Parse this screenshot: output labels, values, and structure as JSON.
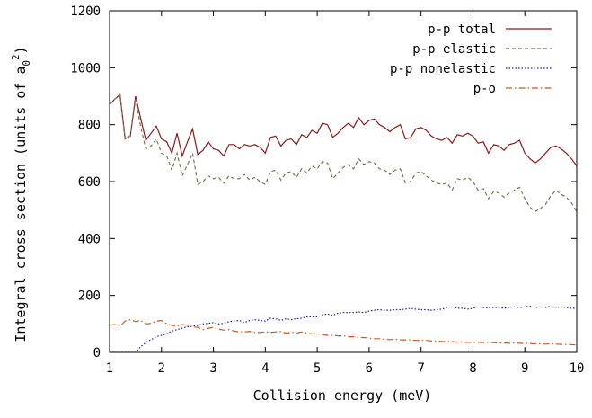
{
  "chart_data": {
    "type": "line",
    "title": "",
    "xlabel": "Collision energy (meV)",
    "ylabel": "Integral cross section (units of a",
    "ylabel_sub": "0",
    "ylabel_sup": "2",
    "ylabel_close": ")",
    "xlim": [
      1,
      10
    ],
    "ylim": [
      0,
      1200
    ],
    "x_ticks": [
      1,
      2,
      3,
      4,
      5,
      6,
      7,
      8,
      9,
      10
    ],
    "y_ticks": [
      0,
      200,
      400,
      600,
      800,
      1000,
      1200
    ],
    "grid": false,
    "legend_position": "top-right",
    "series": [
      {
        "name": "p-p total",
        "color": "#8b1a1a",
        "dash": "solid",
        "x": [
          1.0,
          1.1,
          1.2,
          1.3,
          1.4,
          1.5,
          1.6,
          1.7,
          1.8,
          1.9,
          2.0,
          2.1,
          2.2,
          2.3,
          2.4,
          2.5,
          2.6,
          2.7,
          2.8,
          2.9,
          3.0,
          3.1,
          3.2,
          3.3,
          3.4,
          3.5,
          3.6,
          3.7,
          3.8,
          3.9,
          4.0,
          4.1,
          4.2,
          4.3,
          4.4,
          4.5,
          4.6,
          4.7,
          4.8,
          4.9,
          5.0,
          5.1,
          5.2,
          5.3,
          5.4,
          5.5,
          5.6,
          5.7,
          5.8,
          5.9,
          6.0,
          6.1,
          6.2,
          6.3,
          6.4,
          6.5,
          6.6,
          6.7,
          6.8,
          6.9,
          7.0,
          7.1,
          7.2,
          7.3,
          7.4,
          7.5,
          7.6,
          7.7,
          7.8,
          7.9,
          8.0,
          8.1,
          8.2,
          8.3,
          8.4,
          8.5,
          8.6,
          8.7,
          8.8,
          8.9,
          9.0,
          9.1,
          9.2,
          9.3,
          9.4,
          9.5,
          9.6,
          9.7,
          9.8,
          9.9,
          10.0
        ],
        "y": [
          870,
          890,
          905,
          750,
          760,
          900,
          820,
          745,
          770,
          795,
          750,
          740,
          700,
          770,
          690,
          740,
          785,
          695,
          710,
          740,
          715,
          710,
          690,
          730,
          730,
          715,
          730,
          725,
          730,
          720,
          700,
          755,
          760,
          725,
          745,
          750,
          730,
          765,
          755,
          780,
          770,
          805,
          800,
          755,
          770,
          790,
          805,
          790,
          825,
          800,
          815,
          820,
          800,
          790,
          775,
          790,
          800,
          750,
          755,
          785,
          790,
          780,
          760,
          750,
          745,
          755,
          735,
          765,
          760,
          770,
          760,
          735,
          740,
          700,
          730,
          725,
          710,
          730,
          735,
          745,
          700,
          680,
          665,
          680,
          700,
          720,
          725,
          715,
          700,
          680,
          655
        ]
      },
      {
        "name": "p-p elastic",
        "color": "#7f7350",
        "dash": "4,3",
        "x": [
          1.0,
          1.1,
          1.2,
          1.3,
          1.4,
          1.5,
          1.6,
          1.7,
          1.8,
          1.9,
          2.0,
          2.1,
          2.2,
          2.3,
          2.4,
          2.5,
          2.6,
          2.7,
          2.8,
          2.9,
          3.0,
          3.1,
          3.2,
          3.3,
          3.4,
          3.5,
          3.6,
          3.7,
          3.8,
          3.9,
          4.0,
          4.1,
          4.2,
          4.3,
          4.4,
          4.5,
          4.6,
          4.7,
          4.8,
          4.9,
          5.0,
          5.1,
          5.2,
          5.3,
          5.4,
          5.5,
          5.6,
          5.7,
          5.8,
          5.9,
          6.0,
          6.1,
          6.2,
          6.3,
          6.4,
          6.5,
          6.6,
          6.7,
          6.8,
          6.9,
          7.0,
          7.1,
          7.2,
          7.3,
          7.4,
          7.5,
          7.6,
          7.7,
          7.8,
          7.9,
          8.0,
          8.1,
          8.2,
          8.3,
          8.4,
          8.5,
          8.6,
          8.7,
          8.8,
          8.9,
          9.0,
          9.1,
          9.2,
          9.3,
          9.4,
          9.5,
          9.6,
          9.7,
          9.8,
          9.9,
          10.0
        ],
        "y": [
          870,
          890,
          905,
          750,
          760,
          890,
          790,
          715,
          725,
          750,
          700,
          690,
          640,
          700,
          620,
          660,
          700,
          590,
          600,
          620,
          610,
          615,
          595,
          620,
          610,
          610,
          625,
          605,
          615,
          600,
          590,
          635,
          640,
          605,
          630,
          635,
          615,
          645,
          630,
          655,
          645,
          670,
          665,
          610,
          630,
          650,
          660,
          645,
          680,
          660,
          670,
          665,
          645,
          640,
          625,
          640,
          645,
          595,
          600,
          630,
          635,
          620,
          605,
          595,
          590,
          595,
          570,
          610,
          605,
          615,
          600,
          570,
          575,
          540,
          565,
          560,
          545,
          560,
          570,
          580,
          540,
          510,
          495,
          505,
          520,
          550,
          570,
          555,
          545,
          525,
          495
        ]
      },
      {
        "name": "p-p nonelastic",
        "color": "#1c1cb4",
        "dash": "1.5,2",
        "x": [
          1.0,
          1.1,
          1.2,
          1.3,
          1.4,
          1.5,
          1.6,
          1.7,
          1.8,
          1.9,
          2.0,
          2.1,
          2.2,
          2.3,
          2.4,
          2.5,
          2.6,
          2.7,
          2.8,
          2.9,
          3.0,
          3.1,
          3.2,
          3.3,
          3.4,
          3.5,
          3.6,
          3.7,
          3.8,
          3.9,
          4.0,
          4.1,
          4.2,
          4.3,
          4.4,
          4.5,
          4.6,
          4.7,
          4.8,
          4.9,
          5.0,
          5.1,
          5.2,
          5.3,
          5.4,
          5.5,
          5.6,
          5.7,
          5.8,
          5.9,
          6.0,
          6.1,
          6.2,
          6.3,
          6.4,
          6.5,
          6.6,
          6.7,
          6.8,
          6.9,
          7.0,
          7.1,
          7.2,
          7.3,
          7.4,
          7.5,
          7.6,
          7.7,
          7.8,
          7.9,
          8.0,
          8.1,
          8.2,
          8.3,
          8.4,
          8.5,
          8.6,
          8.7,
          8.8,
          8.9,
          9.0,
          9.1,
          9.2,
          9.3,
          9.4,
          9.5,
          9.6,
          9.7,
          9.8,
          9.9,
          10.0
        ],
        "y": [
          0,
          0,
          0,
          0,
          0,
          0,
          20,
          35,
          45,
          55,
          60,
          65,
          75,
          80,
          85,
          90,
          92,
          95,
          100,
          102,
          105,
          100,
          102,
          108,
          110,
          112,
          105,
          112,
          115,
          112,
          110,
          120,
          118,
          112,
          118,
          115,
          118,
          120,
          125,
          125,
          125,
          132,
          135,
          130,
          138,
          140,
          140,
          140,
          142,
          140,
          145,
          148,
          150,
          148,
          148,
          150,
          150,
          152,
          155,
          152,
          150,
          150,
          148,
          150,
          152,
          158,
          160,
          155,
          155,
          152,
          155,
          160,
          158,
          156,
          158,
          158,
          155,
          158,
          160,
          158,
          160,
          162,
          158,
          160,
          158,
          162,
          158,
          160,
          158,
          155,
          155
        ]
      },
      {
        "name": "p-o",
        "color": "#d2561f",
        "dash": "7,3,1.5,3",
        "x": [
          1.0,
          1.1,
          1.2,
          1.3,
          1.4,
          1.5,
          1.6,
          1.7,
          1.8,
          1.9,
          2.0,
          2.1,
          2.2,
          2.3,
          2.4,
          2.5,
          2.6,
          2.7,
          2.8,
          2.9,
          3.0,
          3.1,
          3.2,
          3.3,
          3.4,
          3.5,
          3.6,
          3.7,
          3.8,
          3.9,
          4.0,
          4.1,
          4.2,
          4.3,
          4.4,
          4.5,
          4.6,
          4.7,
          4.8,
          4.9,
          5.0,
          5.1,
          5.2,
          5.3,
          5.4,
          5.5,
          5.6,
          5.7,
          5.8,
          5.9,
          6.0,
          6.1,
          6.2,
          6.3,
          6.4,
          6.5,
          6.6,
          6.7,
          6.8,
          6.9,
          7.0,
          7.1,
          7.2,
          7.3,
          7.4,
          7.5,
          7.6,
          7.7,
          7.8,
          7.9,
          8.0,
          8.1,
          8.2,
          8.3,
          8.4,
          8.5,
          8.6,
          8.7,
          8.8,
          8.9,
          9.0,
          9.1,
          9.2,
          9.3,
          9.4,
          9.5,
          9.6,
          9.7,
          9.8,
          9.9,
          10.0
        ],
        "y": [
          95,
          98,
          92,
          110,
          115,
          108,
          112,
          100,
          102,
          110,
          112,
          100,
          95,
          92,
          98,
          95,
          90,
          88,
          80,
          85,
          88,
          82,
          78,
          80,
          75,
          72,
          72,
          74,
          70,
          70,
          72,
          70,
          72,
          73,
          68,
          70,
          68,
          72,
          68,
          65,
          65,
          62,
          60,
          60,
          58,
          58,
          55,
          55,
          52,
          52,
          50,
          48,
          48,
          46,
          45,
          46,
          44,
          44,
          44,
          42,
          42,
          42,
          40,
          40,
          38,
          38,
          38,
          36,
          36,
          35,
          35,
          35,
          34,
          35,
          34,
          33,
          33,
          32,
          33,
          32,
          32,
          31,
          30,
          30,
          29,
          30,
          29,
          28,
          28,
          27,
          26
        ]
      }
    ]
  }
}
